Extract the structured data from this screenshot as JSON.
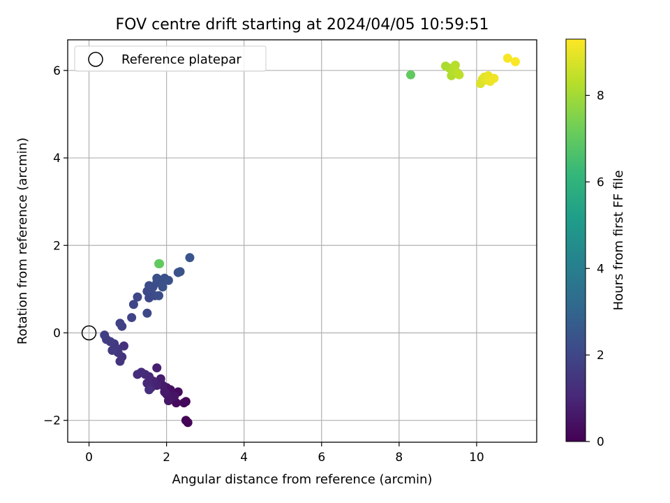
{
  "chart_data": {
    "type": "scatter",
    "title": "FOV centre drift starting at 2024/04/05 10:59:51",
    "xlabel": "Angular distance from reference (arcmin)",
    "ylabel": "Rotation from reference (arcmin)",
    "xlim": [
      -0.55,
      11.55
    ],
    "ylim": [
      -2.5,
      6.7
    ],
    "xticks": [
      0,
      2,
      4,
      6,
      8,
      10
    ],
    "yticks": [
      -2,
      0,
      2,
      4,
      6
    ],
    "grid": true,
    "legend": {
      "placement": "top-left",
      "label": "Reference platepar"
    },
    "reference_point": {
      "x": 0,
      "y": 0
    },
    "colorbar": {
      "label": "Hours from first FF file",
      "range": [
        0,
        9.3
      ],
      "ticks": [
        0,
        2,
        4,
        6,
        8
      ],
      "colormap": [
        "#440154",
        "#482878",
        "#3e4989",
        "#31688e",
        "#26828e",
        "#1f9e89",
        "#35b779",
        "#6ece58",
        "#b5de2b",
        "#fde725"
      ]
    },
    "points": [
      {
        "x": 2.55,
        "y": -2.05,
        "h": 0.05
      },
      {
        "x": 2.5,
        "y": -2.0,
        "h": 0.1
      },
      {
        "x": 2.5,
        "y": -1.57,
        "h": 0.15
      },
      {
        "x": 2.45,
        "y": -1.6,
        "h": 0.2
      },
      {
        "x": 2.25,
        "y": -1.6,
        "h": 0.25
      },
      {
        "x": 2.3,
        "y": -1.35,
        "h": 0.3
      },
      {
        "x": 2.15,
        "y": -1.4,
        "h": 0.35
      },
      {
        "x": 2.1,
        "y": -1.3,
        "h": 0.4
      },
      {
        "x": 2.0,
        "y": -1.25,
        "h": 0.45
      },
      {
        "x": 2.2,
        "y": -1.45,
        "h": 0.5
      },
      {
        "x": 2.05,
        "y": -1.55,
        "h": 0.55
      },
      {
        "x": 2.0,
        "y": -1.4,
        "h": 0.6
      },
      {
        "x": 1.95,
        "y": -1.35,
        "h": 0.65
      },
      {
        "x": 1.9,
        "y": -1.2,
        "h": 0.7
      },
      {
        "x": 1.85,
        "y": -1.05,
        "h": 0.75
      },
      {
        "x": 1.75,
        "y": -0.8,
        "h": 0.8
      },
      {
        "x": 1.75,
        "y": -1.2,
        "h": 0.85
      },
      {
        "x": 1.65,
        "y": -1.1,
        "h": 0.9
      },
      {
        "x": 1.6,
        "y": -1.25,
        "h": 0.95
      },
      {
        "x": 1.55,
        "y": -1.0,
        "h": 1.0
      },
      {
        "x": 1.5,
        "y": -1.15,
        "h": 1.05
      },
      {
        "x": 1.45,
        "y": -0.95,
        "h": 1.1
      },
      {
        "x": 1.35,
        "y": -0.9,
        "h": 1.15
      },
      {
        "x": 1.25,
        "y": -0.95,
        "h": 1.2
      },
      {
        "x": 1.55,
        "y": -1.3,
        "h": 1.25
      },
      {
        "x": 0.9,
        "y": -0.3,
        "h": 1.3
      },
      {
        "x": 0.85,
        "y": -0.55,
        "h": 1.35
      },
      {
        "x": 0.8,
        "y": -0.65,
        "h": 1.4
      },
      {
        "x": 0.75,
        "y": -0.45,
        "h": 1.45
      },
      {
        "x": 0.7,
        "y": -0.35,
        "h": 1.5
      },
      {
        "x": 0.65,
        "y": -0.25,
        "h": 1.55
      },
      {
        "x": 0.6,
        "y": -0.4,
        "h": 1.6
      },
      {
        "x": 0.55,
        "y": -0.2,
        "h": 1.65
      },
      {
        "x": 0.45,
        "y": -0.15,
        "h": 1.7
      },
      {
        "x": 0.4,
        "y": -0.05,
        "h": 1.75
      },
      {
        "x": 0.85,
        "y": 0.15,
        "h": 1.8
      },
      {
        "x": 0.8,
        "y": 0.22,
        "h": 1.85
      },
      {
        "x": 1.1,
        "y": 0.35,
        "h": 1.9
      },
      {
        "x": 1.15,
        "y": 0.65,
        "h": 1.95
      },
      {
        "x": 1.25,
        "y": 0.82,
        "h": 2.0
      },
      {
        "x": 1.5,
        "y": 0.45,
        "h": 2.02
      },
      {
        "x": 1.55,
        "y": 0.8,
        "h": 2.05
      },
      {
        "x": 1.5,
        "y": 0.95,
        "h": 2.08
      },
      {
        "x": 1.6,
        "y": 1.0,
        "h": 2.1
      },
      {
        "x": 1.55,
        "y": 1.08,
        "h": 2.12
      },
      {
        "x": 1.7,
        "y": 0.85,
        "h": 2.15
      },
      {
        "x": 1.65,
        "y": 1.05,
        "h": 2.18
      },
      {
        "x": 1.75,
        "y": 1.15,
        "h": 2.2
      },
      {
        "x": 1.8,
        "y": 0.85,
        "h": 2.22
      },
      {
        "x": 1.75,
        "y": 1.25,
        "h": 2.25
      },
      {
        "x": 1.85,
        "y": 1.2,
        "h": 2.28
      },
      {
        "x": 1.95,
        "y": 1.25,
        "h": 2.3
      },
      {
        "x": 2.05,
        "y": 1.2,
        "h": 2.33
      },
      {
        "x": 1.9,
        "y": 1.05,
        "h": 2.35
      },
      {
        "x": 2.3,
        "y": 1.38,
        "h": 2.4
      },
      {
        "x": 2.35,
        "y": 1.4,
        "h": 2.42
      },
      {
        "x": 2.6,
        "y": 1.72,
        "h": 2.45
      },
      {
        "x": 1.82,
        "y": 1.58,
        "h": 7.1
      },
      {
        "x": 1.8,
        "y": 1.58,
        "h": 7.0
      },
      {
        "x": 8.3,
        "y": 5.9,
        "h": 7.0
      },
      {
        "x": 9.2,
        "y": 6.1,
        "h": 8.1
      },
      {
        "x": 9.3,
        "y": 6.05,
        "h": 8.15
      },
      {
        "x": 9.35,
        "y": 5.88,
        "h": 8.2
      },
      {
        "x": 9.4,
        "y": 6.0,
        "h": 8.25
      },
      {
        "x": 9.45,
        "y": 6.12,
        "h": 8.3
      },
      {
        "x": 9.5,
        "y": 5.95,
        "h": 8.35
      },
      {
        "x": 9.55,
        "y": 5.9,
        "h": 8.4
      },
      {
        "x": 10.1,
        "y": 5.7,
        "h": 8.8
      },
      {
        "x": 10.15,
        "y": 5.8,
        "h": 8.85
      },
      {
        "x": 10.2,
        "y": 5.85,
        "h": 8.9
      },
      {
        "x": 10.25,
        "y": 5.78,
        "h": 8.95
      },
      {
        "x": 10.3,
        "y": 5.88,
        "h": 9.0
      },
      {
        "x": 10.35,
        "y": 5.75,
        "h": 9.05
      },
      {
        "x": 10.45,
        "y": 5.82,
        "h": 9.1
      },
      {
        "x": 10.8,
        "y": 6.28,
        "h": 9.2
      },
      {
        "x": 11.0,
        "y": 6.2,
        "h": 9.25
      }
    ]
  }
}
